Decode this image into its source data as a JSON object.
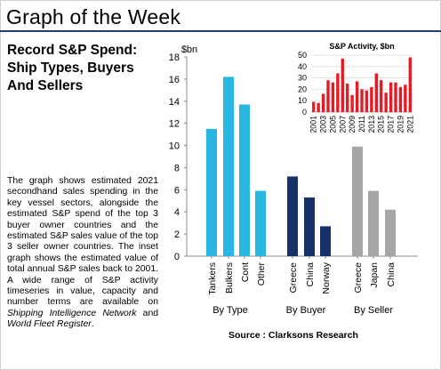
{
  "header": {
    "title": "Graph of the Week"
  },
  "subtitle": [
    "Record S&P Spend:",
    "Ship Types, Buyers",
    "And Sellers"
  ],
  "description": {
    "text_1": "The graph shows estimated 2021 secondhand sales spending in the key vessel sectors, alongside the estimated S&P spend of the top 3 buyer owner countries and the estimated S&P sales value of the top 3 seller owner countries. The inset graph shows the estimated value of total annual S&P sales back to 2001. A wide range of S&P activity timeseries in value, capacity and number terms are available on ",
    "italic_1": "Shipping Intelligence Network",
    "text_2": " and ",
    "italic_2": "World Fleet Register",
    "text_3": "."
  },
  "source": "Source : Clarksons Research",
  "colors": {
    "header_rule": "#1f3d7a",
    "type": "#29b6e0",
    "buyer": "#16316a",
    "seller": "#a6a6a6",
    "inset": "#e51b24"
  },
  "chart_data": [
    {
      "type": "bar",
      "ylabel": "$bn",
      "ylim": [
        0,
        18
      ],
      "yticks": [
        0,
        2,
        4,
        6,
        8,
        10,
        12,
        14,
        16,
        18
      ],
      "grid": false,
      "groups": [
        {
          "name": "By Type",
          "color_key": "type",
          "categories": [
            "Tankers",
            "Bulkers",
            "Cont",
            "Other"
          ],
          "values": [
            11.5,
            16.2,
            13.7,
            5.9
          ]
        },
        {
          "name": "By Buyer",
          "color_key": "buyer",
          "categories": [
            "Greece",
            "China",
            "Norway"
          ],
          "values": [
            7.2,
            5.3,
            2.7
          ]
        },
        {
          "name": "By Seller",
          "color_key": "seller",
          "categories": [
            "Greece",
            "Japan",
            "China"
          ],
          "values": [
            9.9,
            5.9,
            4.2
          ]
        }
      ]
    },
    {
      "type": "bar",
      "title": "S&P Activity, $bn",
      "ylim": [
        0,
        50
      ],
      "yticks": [
        0,
        10,
        20,
        30,
        40,
        50
      ],
      "grid": true,
      "x": [
        "2001",
        "2002",
        "2003",
        "2004",
        "2005",
        "2006",
        "2007",
        "2008",
        "2009",
        "2010",
        "2011",
        "2012",
        "2013",
        "2014",
        "2015",
        "2016",
        "2017",
        "2018",
        "2019",
        "2020",
        "2021"
      ],
      "xtick_labels": [
        "2001",
        "2003",
        "2005",
        "2007",
        "2009",
        "2011",
        "2013",
        "2015",
        "2017",
        "2019",
        "2021"
      ],
      "values": [
        9,
        8,
        16,
        28,
        26,
        34,
        47,
        25,
        15,
        27,
        20,
        19,
        22,
        34,
        28,
        17,
        26,
        26,
        22,
        24,
        48
      ]
    }
  ]
}
